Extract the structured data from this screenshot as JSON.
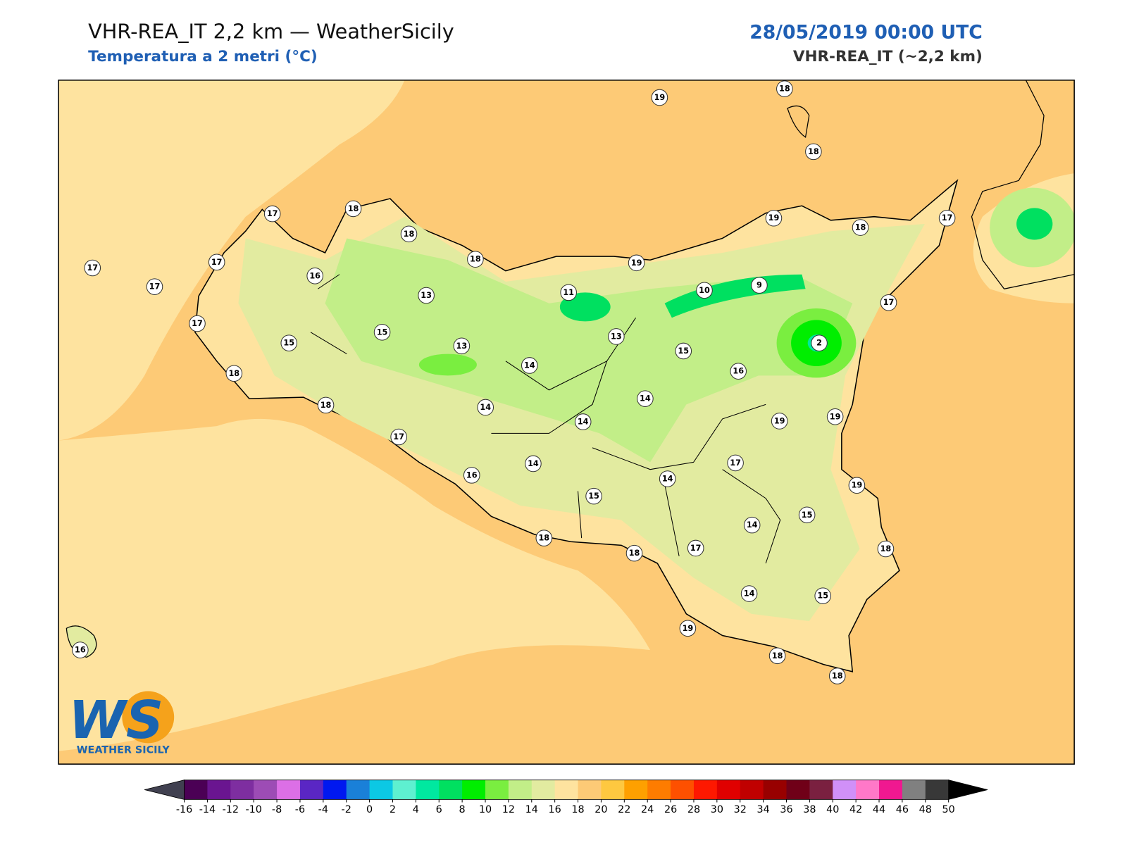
{
  "header": {
    "title": "VHR-REA_IT 2,2 km — WeatherSicily",
    "subtitle": "Temperatura a 2 metri (°C)",
    "datetime": "28/05/2019 00:00 UTC",
    "model": "VHR-REA_IT (~2,2 km)"
  },
  "stations": [
    19,
    18,
    18,
    17,
    18,
    18,
    17,
    17,
    16,
    17,
    18,
    19,
    19,
    18,
    17,
    13,
    11,
    10,
    9,
    17,
    17,
    15,
    13,
    2,
    15,
    13,
    15,
    14,
    16,
    18,
    14,
    18,
    14,
    14,
    19,
    19,
    17,
    17,
    14,
    16,
    14,
    19,
    15,
    15,
    14,
    18,
    18,
    17,
    18,
    14,
    15,
    19,
    16,
    18,
    18
  ],
  "colorbar": {
    "ticks": [
      -16,
      -14,
      -12,
      -10,
      -8,
      -6,
      -4,
      -2,
      0,
      2,
      4,
      6,
      8,
      10,
      12,
      14,
      16,
      18,
      20,
      22,
      24,
      26,
      28,
      30,
      32,
      34,
      36,
      38,
      40,
      42,
      44,
      46,
      48,
      50
    ],
    "colors": [
      "#4b0055",
      "#6a1590",
      "#7e2ea0",
      "#9d4cb5",
      "#dc6fe6",
      "#5a26c4",
      "#0018f0",
      "#1a80d8",
      "#0cc8e4",
      "#5ef0d0",
      "#00e8a0",
      "#00e060",
      "#00ee00",
      "#7aee40",
      "#c2ee88",
      "#e2eba0",
      "#fee39f",
      "#fdca76",
      "#fec840",
      "#fea000",
      "#fe7c00",
      "#fe5000",
      "#fe1800",
      "#e00000",
      "#c00000",
      "#980000",
      "#700018",
      "#7a2040",
      "#d090f8",
      "#ff78c8",
      "#f01890",
      "#808080",
      "#383838"
    ],
    "under": "#404050",
    "over": "#000000"
  },
  "logo": {
    "mark": "WS",
    "name": "WEATHER SICILY"
  }
}
